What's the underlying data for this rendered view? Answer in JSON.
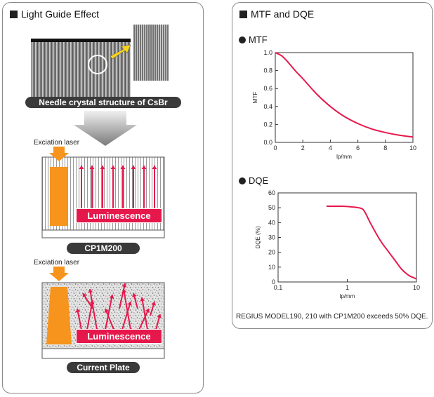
{
  "left": {
    "title": "Light Guide Effect",
    "needle_caption": "Needle crystal structure of CsBr",
    "cp1m200": {
      "excitation_label": "Exciation laser",
      "luminescence_label": "Luminescence",
      "plate_label": "CP1M200"
    },
    "current": {
      "excitation_label": "Exciation laser",
      "luminescence_label": "Luminescence",
      "plate_label": "Current Plate"
    },
    "colors": {
      "laser": "#f7941d",
      "luminescence": "#e6184b",
      "arrow": "#f7d31d"
    }
  },
  "right": {
    "title": "MTF and DQE",
    "caption": "REGIUS MODEL190, 210 with CP1M200 exceeds 50% DQE."
  },
  "chart_data": [
    {
      "type": "line",
      "title": "MTF",
      "xlabel": "lp/mm",
      "ylabel": "MTF",
      "xlim": [
        0,
        10
      ],
      "ylim": [
        0,
        1.0
      ],
      "xticks": [
        0,
        2,
        4,
        6,
        8,
        10
      ],
      "yticks": [
        0.0,
        0.2,
        0.4,
        0.6,
        0.8,
        1.0
      ],
      "grid": false,
      "color": "#e6184b",
      "series": [
        {
          "x": [
            0,
            0.5,
            1,
            1.5,
            2,
            3,
            4,
            5,
            6,
            7,
            8,
            9,
            10
          ],
          "y": [
            1.0,
            0.96,
            0.88,
            0.79,
            0.71,
            0.54,
            0.4,
            0.29,
            0.21,
            0.15,
            0.11,
            0.08,
            0.06
          ]
        }
      ]
    },
    {
      "type": "line",
      "title": "DQE",
      "xlabel": "lp/mm",
      "ylabel": "DQE (%)",
      "xscale": "log",
      "xlim": [
        0.1,
        10
      ],
      "ylim": [
        0,
        60
      ],
      "xticks": [
        0.1,
        1,
        10
      ],
      "yticks": [
        0,
        10,
        20,
        30,
        40,
        50,
        60
      ],
      "grid": false,
      "color": "#e6184b",
      "series": [
        {
          "x": [
            0.5,
            0.8,
            1.2,
            1.6,
            1.8,
            2.2,
            3,
            4,
            5,
            6,
            7,
            8,
            9,
            10
          ],
          "y": [
            51,
            51,
            50.5,
            49.5,
            47,
            39,
            28,
            20,
            14,
            9,
            6,
            4,
            3,
            2
          ]
        }
      ]
    }
  ]
}
